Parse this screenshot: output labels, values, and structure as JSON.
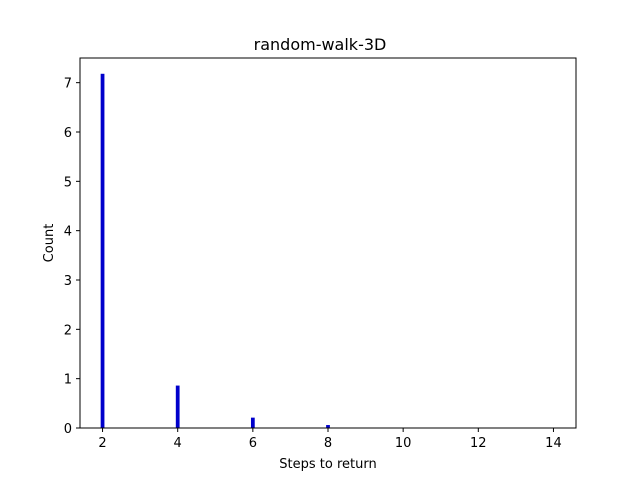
{
  "chart_data": {
    "type": "bar",
    "title": "random-walk-3D",
    "xlabel": "Steps to return",
    "ylabel": "Count",
    "x": [
      2,
      4,
      6,
      8
    ],
    "values": [
      7.18,
      0.86,
      0.21,
      0.06
    ],
    "xlim": [
      1.4,
      14.6
    ],
    "ylim": [
      0,
      7.5
    ],
    "xticks": [
      2,
      4,
      6,
      8,
      10,
      12,
      14
    ],
    "yticks": [
      0,
      1,
      2,
      3,
      4,
      5,
      6,
      7
    ],
    "bar_width": 0.1,
    "grid": false,
    "bar_color": "#0000cc"
  }
}
